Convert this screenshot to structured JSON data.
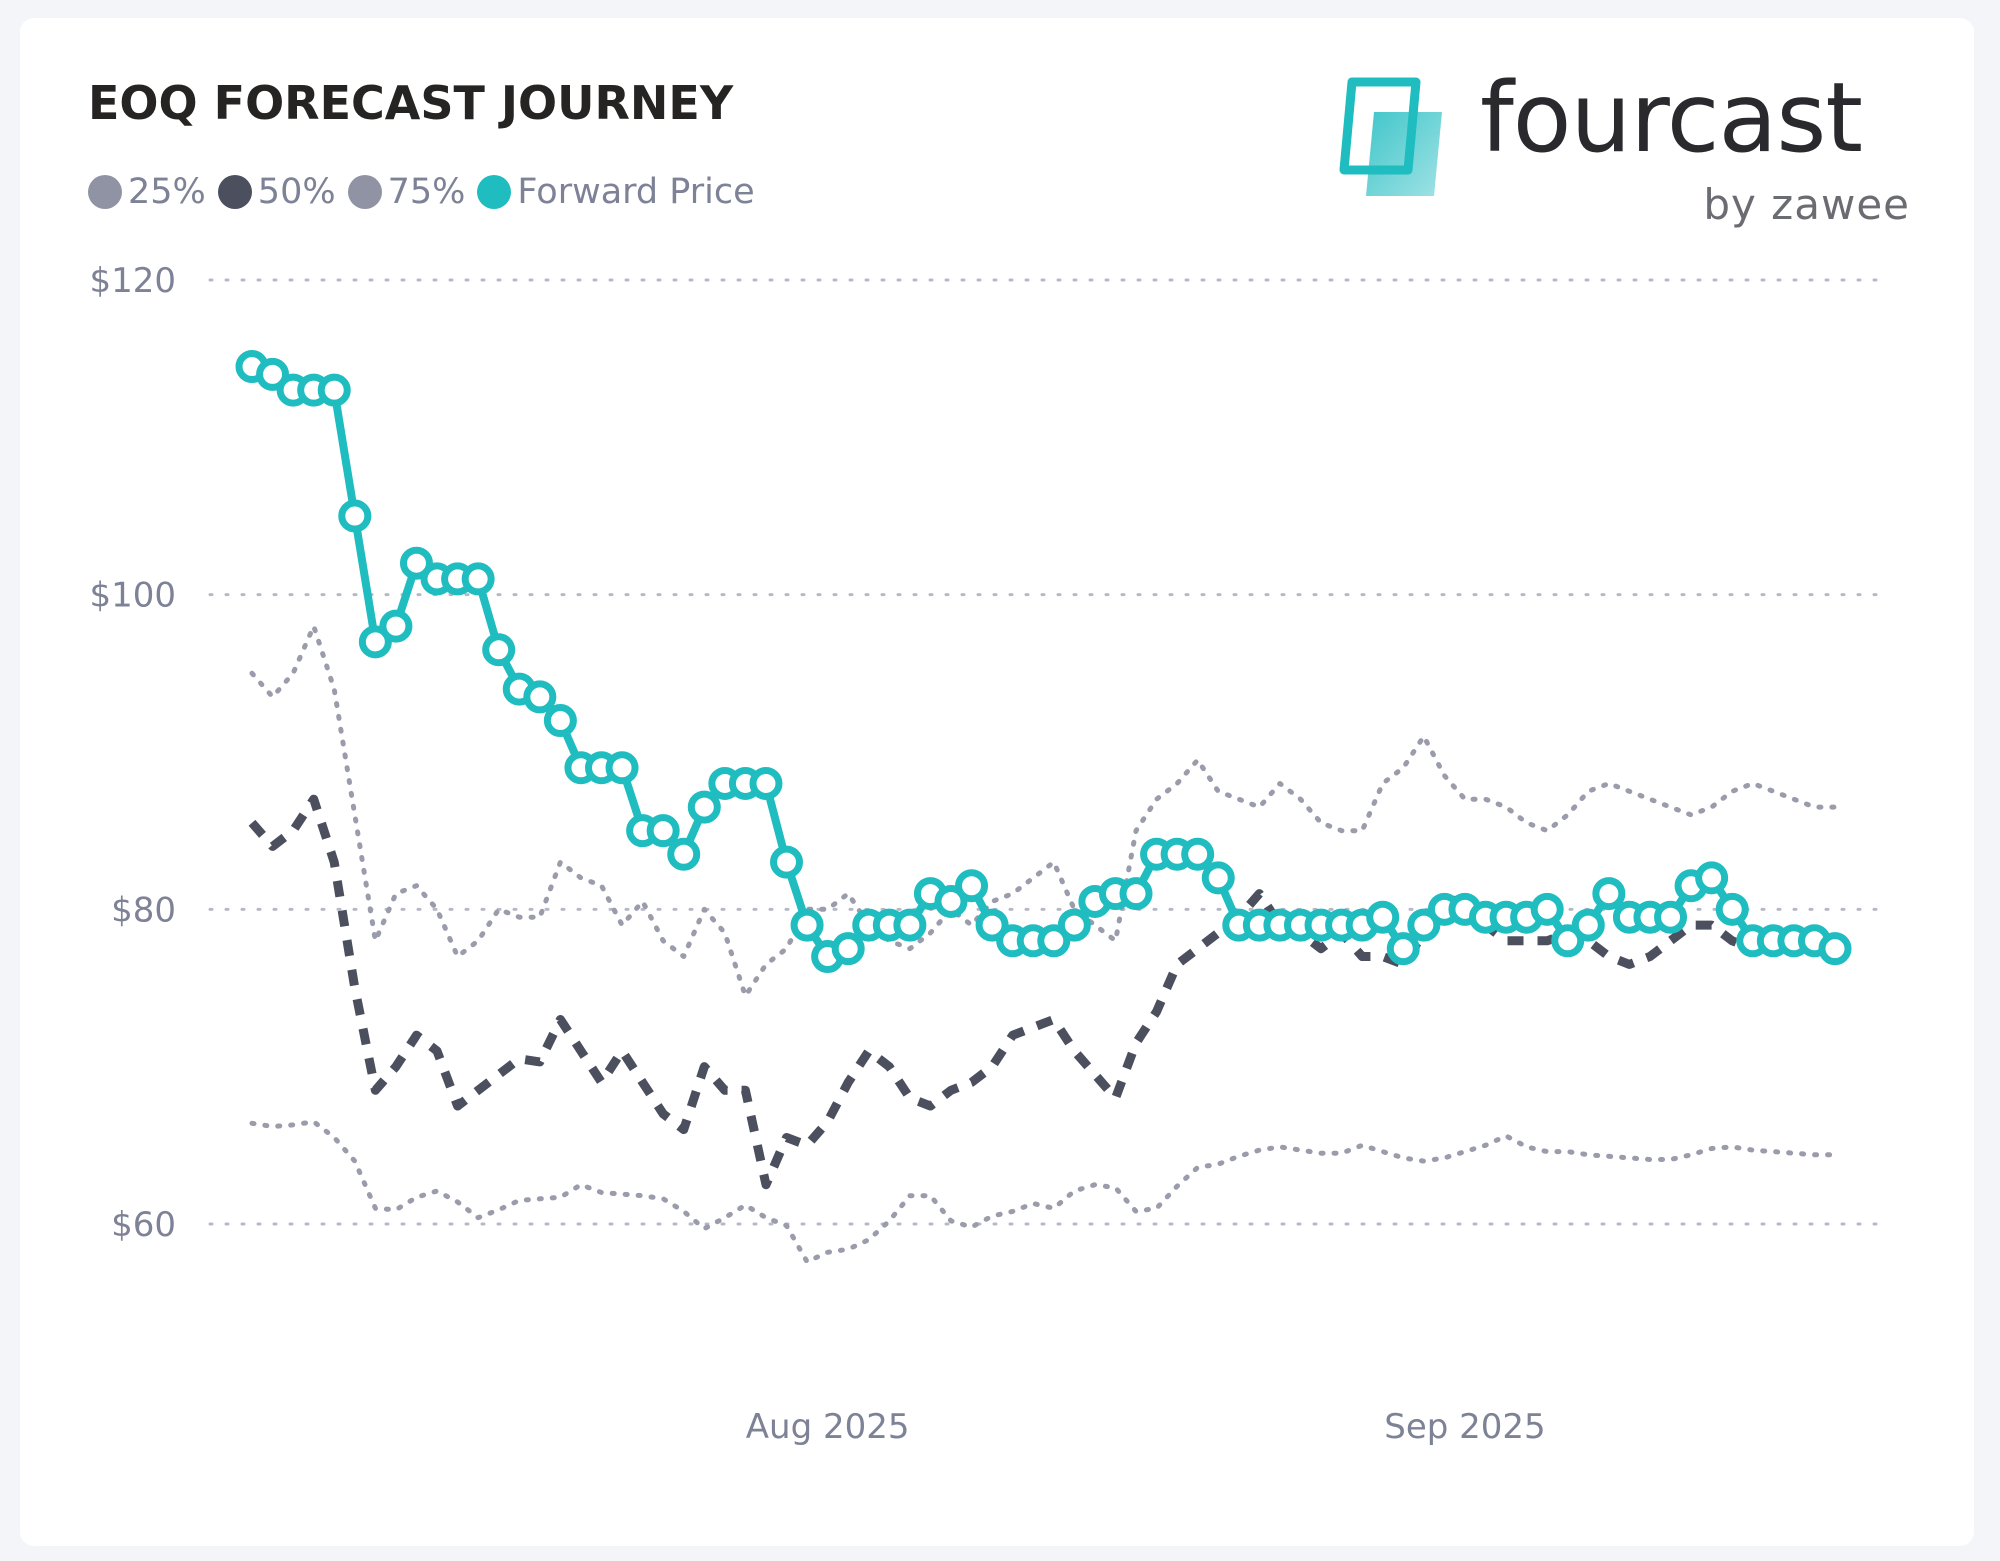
{
  "title": "EOQ FORECAST JOURNEY",
  "logo": {
    "wordmark": "fourcast",
    "sub": "by zawee",
    "icon": "fourcast-logo-icon"
  },
  "colors": {
    "p25": "#9a9cab",
    "p50": "#4b4f5e",
    "p75": "#9a9cab",
    "forward": "#1fbcc0",
    "grid": "#b7bac6",
    "tick": "#7d8296",
    "legend25": "#8f93a4",
    "legend50": "#4b4f5e",
    "legend75": "#8f93a4"
  },
  "legend": [
    {
      "key": "p25",
      "label": "25%"
    },
    {
      "key": "p50",
      "label": "50%"
    },
    {
      "key": "p75",
      "label": "75%"
    },
    {
      "key": "forward",
      "label": "Forward Price"
    }
  ],
  "chart_data": {
    "type": "line",
    "title": "EOQ FORECAST JOURNEY",
    "xlabel": "",
    "ylabel": "",
    "ylim": [
      50,
      120
    ],
    "xlim": [
      "2025-07-03",
      "2025-09-20"
    ],
    "y_ticks": [
      "$120",
      "$100",
      "$80",
      "$60"
    ],
    "y_tick_values": [
      120,
      100,
      80,
      60
    ],
    "x_ticks": [
      {
        "label": "Aug 2025",
        "date": "2025-08-01"
      },
      {
        "label": "Sep 2025",
        "date": "2025-09-01"
      }
    ],
    "grid": true,
    "legend_position": "top-left",
    "series": [
      {
        "name": "25%",
        "style": "dotted",
        "dates": [
          "2025-07-04",
          "2025-07-05",
          "2025-07-06",
          "2025-07-07",
          "2025-07-08",
          "2025-07-09",
          "2025-07-10",
          "2025-07-11",
          "2025-07-12",
          "2025-07-13",
          "2025-07-14",
          "2025-07-15",
          "2025-07-16",
          "2025-07-17",
          "2025-07-18",
          "2025-07-19",
          "2025-07-20",
          "2025-07-21",
          "2025-07-22",
          "2025-07-23",
          "2025-07-24",
          "2025-07-25",
          "2025-07-26",
          "2025-07-27",
          "2025-07-28",
          "2025-07-29",
          "2025-07-30",
          "2025-07-31",
          "2025-08-01",
          "2025-08-02",
          "2025-08-03",
          "2025-08-04",
          "2025-08-05",
          "2025-08-06",
          "2025-08-07",
          "2025-08-08",
          "2025-08-09",
          "2025-08-10",
          "2025-08-11",
          "2025-08-12",
          "2025-08-13",
          "2025-08-14",
          "2025-08-15",
          "2025-08-16",
          "2025-08-17",
          "2025-08-18",
          "2025-08-19",
          "2025-08-20",
          "2025-08-21",
          "2025-08-22",
          "2025-08-23",
          "2025-08-24",
          "2025-08-25",
          "2025-08-26",
          "2025-08-27",
          "2025-08-28",
          "2025-08-29",
          "2025-08-30",
          "2025-08-31",
          "2025-09-01",
          "2025-09-02",
          "2025-09-03",
          "2025-09-04",
          "2025-09-05",
          "2025-09-06",
          "2025-09-07",
          "2025-09-08",
          "2025-09-09",
          "2025-09-10",
          "2025-09-11",
          "2025-09-12",
          "2025-09-13",
          "2025-09-14",
          "2025-09-15",
          "2025-09-16",
          "2025-09-17",
          "2025-09-18",
          "2025-09-19"
        ],
        "values": [
          66.4,
          66.2,
          66.3,
          66.5,
          65.5,
          64.0,
          61.0,
          60.9,
          61.7,
          62.1,
          61.4,
          60.4,
          60.9,
          61.5,
          61.6,
          61.7,
          62.5,
          62.0,
          61.9,
          61.8,
          61.6,
          60.8,
          59.7,
          60.4,
          61.2,
          60.4,
          59.9,
          57.6,
          58.2,
          58.4,
          59.0,
          60.2,
          61.8,
          61.8,
          60.2,
          59.8,
          60.5,
          60.8,
          61.3,
          61.0,
          62.1,
          62.5,
          62.3,
          60.8,
          61.0,
          62.4,
          63.6,
          63.8,
          64.3,
          64.7,
          64.9,
          64.7,
          64.5,
          64.5,
          65.0,
          64.6,
          64.2,
          64.0,
          64.2,
          64.6,
          65.0,
          65.6,
          64.9,
          64.6,
          64.6,
          64.4,
          64.3,
          64.2,
          64.1,
          64.1,
          64.4,
          64.8,
          64.9,
          64.7,
          64.6,
          64.5,
          64.4,
          64.4
        ]
      },
      {
        "name": "50%",
        "style": "dashed",
        "dates": [
          "2025-07-04",
          "2025-07-05",
          "2025-07-06",
          "2025-07-07",
          "2025-07-08",
          "2025-07-09",
          "2025-07-10",
          "2025-07-11",
          "2025-07-12",
          "2025-07-13",
          "2025-07-14",
          "2025-07-15",
          "2025-07-16",
          "2025-07-17",
          "2025-07-18",
          "2025-07-19",
          "2025-07-20",
          "2025-07-21",
          "2025-07-22",
          "2025-07-23",
          "2025-07-24",
          "2025-07-25",
          "2025-07-26",
          "2025-07-27",
          "2025-07-28",
          "2025-07-29",
          "2025-07-30",
          "2025-07-31",
          "2025-08-01",
          "2025-08-02",
          "2025-08-03",
          "2025-08-04",
          "2025-08-05",
          "2025-08-06",
          "2025-08-07",
          "2025-08-08",
          "2025-08-09",
          "2025-08-10",
          "2025-08-11",
          "2025-08-12",
          "2025-08-13",
          "2025-08-14",
          "2025-08-15",
          "2025-08-16",
          "2025-08-17",
          "2025-08-18",
          "2025-08-19",
          "2025-08-20",
          "2025-08-21",
          "2025-08-22",
          "2025-08-23",
          "2025-08-24",
          "2025-08-25",
          "2025-08-26",
          "2025-08-27",
          "2025-08-28",
          "2025-08-29",
          "2025-08-30",
          "2025-08-31",
          "2025-09-01",
          "2025-09-02",
          "2025-09-03",
          "2025-09-04",
          "2025-09-05",
          "2025-09-06",
          "2025-09-07",
          "2025-09-08",
          "2025-09-09",
          "2025-09-10",
          "2025-09-11",
          "2025-09-12",
          "2025-09-13",
          "2025-09-14",
          "2025-09-15",
          "2025-09-16",
          "2025-09-17",
          "2025-09-18",
          "2025-09-19"
        ],
        "values": [
          85.5,
          84.0,
          85.0,
          87.0,
          83.0,
          75.0,
          68.5,
          70.0,
          72.0,
          71.0,
          67.5,
          68.5,
          69.5,
          70.5,
          70.3,
          73.0,
          71.0,
          69.0,
          71.0,
          69.0,
          67.0,
          66.0,
          70.0,
          68.5,
          68.5,
          62.5,
          65.5,
          65.0,
          66.5,
          69.0,
          71.0,
          70.0,
          68.0,
          67.5,
          68.5,
          69.0,
          70.0,
          72.0,
          72.5,
          73.0,
          71.0,
          69.5,
          68.0,
          71.5,
          73.5,
          76.5,
          77.5,
          78.5,
          79.5,
          81.0,
          79.0,
          78.5,
          77.5,
          78.5,
          77.0,
          77.0,
          76.5,
          78.5,
          80.0,
          81.0,
          79.0,
          78.0,
          78.0,
          78.0,
          78.5,
          78.0,
          77.0,
          76.5,
          77.0,
          78.0,
          79.0,
          79.0,
          78.0,
          77.5,
          77.5,
          77.5,
          77.5,
          77.5
        ]
      },
      {
        "name": "75%",
        "style": "dotted",
        "dates": [
          "2025-07-04",
          "2025-07-05",
          "2025-07-06",
          "2025-07-07",
          "2025-07-08",
          "2025-07-09",
          "2025-07-10",
          "2025-07-11",
          "2025-07-12",
          "2025-07-13",
          "2025-07-14",
          "2025-07-15",
          "2025-07-16",
          "2025-07-17",
          "2025-07-18",
          "2025-07-19",
          "2025-07-20",
          "2025-07-21",
          "2025-07-22",
          "2025-07-23",
          "2025-07-24",
          "2025-07-25",
          "2025-07-26",
          "2025-07-27",
          "2025-07-28",
          "2025-07-29",
          "2025-07-30",
          "2025-07-31",
          "2025-08-01",
          "2025-08-02",
          "2025-08-03",
          "2025-08-04",
          "2025-08-05",
          "2025-08-06",
          "2025-08-07",
          "2025-08-08",
          "2025-08-09",
          "2025-08-10",
          "2025-08-11",
          "2025-08-12",
          "2025-08-13",
          "2025-08-14",
          "2025-08-15",
          "2025-08-16",
          "2025-08-17",
          "2025-08-18",
          "2025-08-19",
          "2025-08-20",
          "2025-08-21",
          "2025-08-22",
          "2025-08-23",
          "2025-08-24",
          "2025-08-25",
          "2025-08-26",
          "2025-08-27",
          "2025-08-28",
          "2025-08-29",
          "2025-08-30",
          "2025-08-31",
          "2025-09-01",
          "2025-09-02",
          "2025-09-03",
          "2025-09-04",
          "2025-09-05",
          "2025-09-06",
          "2025-09-07",
          "2025-09-08",
          "2025-09-09",
          "2025-09-10",
          "2025-09-11",
          "2025-09-12",
          "2025-09-13",
          "2025-09-14",
          "2025-09-15",
          "2025-09-16",
          "2025-09-17",
          "2025-09-18",
          "2025-09-19"
        ],
        "values": [
          95.0,
          93.5,
          95.0,
          98.0,
          94.0,
          86.0,
          78.0,
          81.0,
          81.5,
          80.0,
          77.0,
          78.0,
          80.0,
          79.5,
          79.5,
          83.0,
          82.0,
          81.5,
          79.0,
          80.5,
          78.0,
          77.0,
          80.0,
          78.5,
          74.5,
          76.5,
          77.5,
          80.0,
          80.0,
          81.0,
          79.0,
          78.0,
          77.5,
          78.5,
          80.0,
          79.0,
          80.5,
          81.0,
          82.0,
          83.0,
          80.0,
          79.0,
          78.0,
          85.0,
          87.0,
          88.0,
          89.5,
          87.5,
          87.0,
          86.5,
          88.0,
          87.0,
          85.5,
          85.0,
          85.0,
          88.0,
          89.0,
          91.0,
          88.5,
          87.0,
          87.0,
          86.5,
          85.5,
          85.0,
          86.0,
          87.5,
          88.0,
          87.5,
          87.0,
          86.5,
          86.0,
          86.5,
          87.5,
          88.0,
          87.5,
          87.0,
          86.5,
          86.5
        ]
      },
      {
        "name": "Forward Price",
        "style": "solid-markers",
        "dates": [
          "2025-07-04",
          "2025-07-05",
          "2025-07-06",
          "2025-07-07",
          "2025-07-08",
          "2025-07-09",
          "2025-07-10",
          "2025-07-11",
          "2025-07-12",
          "2025-07-13",
          "2025-07-14",
          "2025-07-15",
          "2025-07-16",
          "2025-07-17",
          "2025-07-18",
          "2025-07-19",
          "2025-07-20",
          "2025-07-21",
          "2025-07-22",
          "2025-07-23",
          "2025-07-24",
          "2025-07-25",
          "2025-07-26",
          "2025-07-27",
          "2025-07-28",
          "2025-07-29",
          "2025-07-30",
          "2025-07-31",
          "2025-08-01",
          "2025-08-02",
          "2025-08-03",
          "2025-08-04",
          "2025-08-05",
          "2025-08-06",
          "2025-08-07",
          "2025-08-08",
          "2025-08-09",
          "2025-08-10",
          "2025-08-11",
          "2025-08-12",
          "2025-08-13",
          "2025-08-14",
          "2025-08-15",
          "2025-08-16",
          "2025-08-17",
          "2025-08-18",
          "2025-08-19",
          "2025-08-20",
          "2025-08-21",
          "2025-08-22",
          "2025-08-23",
          "2025-08-24",
          "2025-08-25",
          "2025-08-26",
          "2025-08-27",
          "2025-08-28",
          "2025-08-29",
          "2025-08-30",
          "2025-08-31",
          "2025-09-01",
          "2025-09-02",
          "2025-09-03",
          "2025-09-04",
          "2025-09-05",
          "2025-09-06",
          "2025-09-07",
          "2025-09-08",
          "2025-09-09",
          "2025-09-10",
          "2025-09-11",
          "2025-09-12",
          "2025-09-13",
          "2025-09-14",
          "2025-09-15",
          "2025-09-16",
          "2025-09-17",
          "2025-09-18",
          "2025-09-19"
        ],
        "values": [
          114.5,
          114.0,
          113.0,
          113.0,
          113.0,
          105.0,
          97.0,
          98.0,
          102.0,
          101.0,
          101.0,
          101.0,
          96.5,
          94.0,
          93.5,
          92.0,
          89.0,
          89.0,
          89.0,
          85.0,
          85.0,
          83.5,
          86.5,
          88.0,
          88.0,
          88.0,
          83.0,
          79.0,
          77.0,
          77.5,
          79.0,
          79.0,
          79.0,
          81.0,
          80.5,
          81.5,
          79.0,
          78.0,
          78.0,
          78.0,
          79.0,
          80.5,
          81.0,
          81.0,
          83.5,
          83.5,
          83.5,
          82.0,
          79.0,
          79.0,
          79.0,
          79.0,
          79.0,
          79.0,
          79.0,
          79.5,
          77.5,
          79.0,
          80.0,
          80.0,
          79.5,
          79.5,
          79.5,
          80.0,
          78.0,
          79.0,
          81.0,
          79.5,
          79.5,
          79.5,
          81.5,
          82.0,
          80.0,
          78.0,
          78.0,
          78.0,
          78.0,
          77.5
        ]
      }
    ]
  }
}
